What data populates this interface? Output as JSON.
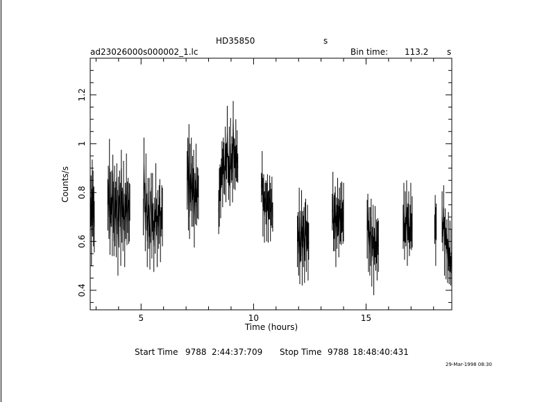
{
  "header": {
    "object": "HD35850",
    "object_unit": "s",
    "filename": "ad23026000s000002_1.lc",
    "bin_label": "Bin time:",
    "bin_value": "113.2",
    "bin_unit": "s"
  },
  "footer": {
    "start_label": "Start Time",
    "start_day": "9788",
    "start_time": "2:44:37:709",
    "stop_label": "Stop Time",
    "stop_day": "9788",
    "stop_time": "18:48:40:431",
    "date_stamp": "29-Mar-1998 08:30"
  },
  "chart_data": {
    "type": "line",
    "xlabel": "Time (hours)",
    "ylabel": "Counts/s",
    "xlim": [
      2.74,
      18.81
    ],
    "ylim": [
      0.32,
      1.35
    ],
    "x_ticks": [
      5,
      10,
      15
    ],
    "y_ticks": [
      0.4,
      0.6,
      0.8,
      1,
      1.2
    ],
    "y_tick_labels": [
      "0.4",
      "0.6",
      "0.8",
      "1",
      "1.2"
    ],
    "segments": [
      {
        "x_start": 2.76,
        "x_end": 2.92,
        "values": [
          0.72,
          0.78,
          0.62,
          0.74,
          0.83,
          0.68,
          0.8,
          0.7,
          0.75,
          0.66
        ]
      },
      {
        "x_start": 3.52,
        "x_end": 4.5,
        "values": [
          0.75,
          0.85,
          0.7,
          0.9,
          0.62,
          0.78,
          0.72,
          0.8,
          0.66,
          0.88,
          0.74,
          0.6,
          0.82,
          0.7,
          0.77,
          0.64,
          0.86,
          0.72,
          0.58,
          0.79,
          0.68,
          0.83,
          0.75,
          0.62,
          0.9,
          0.7,
          0.76,
          0.65,
          0.81,
          0.72,
          0.6,
          0.78,
          0.7,
          0.84,
          0.66,
          0.74,
          0.8,
          0.68,
          0.72,
          0.76
        ]
      },
      {
        "x_start": 5.1,
        "x_end": 5.95,
        "values": [
          0.7,
          0.92,
          0.78,
          0.65,
          0.84,
          0.72,
          0.6,
          0.8,
          0.66,
          0.74,
          0.56,
          0.7,
          0.82,
          0.62,
          0.76,
          0.68,
          0.58,
          0.72,
          0.64,
          0.8,
          0.7,
          0.6,
          0.75,
          0.66,
          0.71,
          0.78,
          0.62,
          0.68,
          0.74,
          0.7
        ]
      },
      {
        "x_start": 7.05,
        "x_end": 7.55,
        "values": [
          0.85,
          0.95,
          0.75,
          1.02,
          0.7,
          0.88,
          0.8,
          0.92,
          0.72,
          0.86,
          0.78,
          0.9,
          0.68,
          0.82,
          0.76,
          0.88,
          0.74,
          0.8,
          0.84,
          0.78
        ]
      },
      {
        "x_start": 8.45,
        "x_end": 9.3,
        "values": [
          0.72,
          0.78,
          0.84,
          0.8,
          0.88,
          0.92,
          0.86,
          0.95,
          0.9,
          0.85,
          0.98,
          0.88,
          0.93,
          1.05,
          0.9,
          0.86,
          0.95,
          0.82,
          1.0,
          0.9,
          0.94,
          0.88,
          1.1,
          0.92,
          0.96,
          0.9,
          0.98,
          0.92,
          0.95,
          0.9
        ]
      },
      {
        "x_start": 10.35,
        "x_end": 10.85,
        "values": [
          0.82,
          0.88,
          0.74,
          0.8,
          0.7,
          0.78,
          0.76,
          0.72,
          0.8,
          0.7,
          0.75,
          0.78,
          0.72,
          0.74,
          0.76,
          0.7
        ]
      },
      {
        "x_start": 11.95,
        "x_end": 12.45,
        "values": [
          0.6,
          0.66,
          0.55,
          0.7,
          0.5,
          0.62,
          0.58,
          0.72,
          0.54,
          0.65,
          0.6,
          0.68,
          0.52,
          0.64,
          0.7,
          0.58,
          0.62,
          0.66,
          0.56,
          0.6
        ]
      },
      {
        "x_start": 13.5,
        "x_end": 14.0,
        "values": [
          0.72,
          0.78,
          0.62,
          0.7,
          0.68,
          0.75,
          0.6,
          0.72,
          0.66,
          0.74,
          0.7,
          0.64,
          0.76,
          0.68,
          0.72,
          0.66,
          0.74,
          0.7,
          0.68,
          0.72
        ]
      },
      {
        "x_start": 15.05,
        "x_end": 15.55,
        "values": [
          0.65,
          0.72,
          0.58,
          0.68,
          0.55,
          0.62,
          0.7,
          0.52,
          0.6,
          0.66,
          0.5,
          0.58,
          0.64,
          0.54,
          0.6,
          0.56,
          0.62,
          0.58
        ]
      },
      {
        "x_start": 16.65,
        "x_end": 17.05,
        "values": [
          0.66,
          0.72,
          0.6,
          0.7,
          0.64,
          0.76,
          0.62,
          0.68,
          0.7,
          0.6,
          0.66,
          0.72,
          0.64,
          0.68
        ]
      },
      {
        "x_start": 18.05,
        "x_end": 18.12,
        "values": [
          0.65,
          0.7,
          0.62,
          0.68
        ]
      },
      {
        "x_start": 18.38,
        "x_end": 18.8,
        "values": [
          0.7,
          0.62,
          0.74,
          0.58,
          0.66,
          0.55,
          0.63,
          0.52,
          0.6,
          0.5,
          0.58,
          0.48,
          0.56
        ]
      }
    ]
  }
}
